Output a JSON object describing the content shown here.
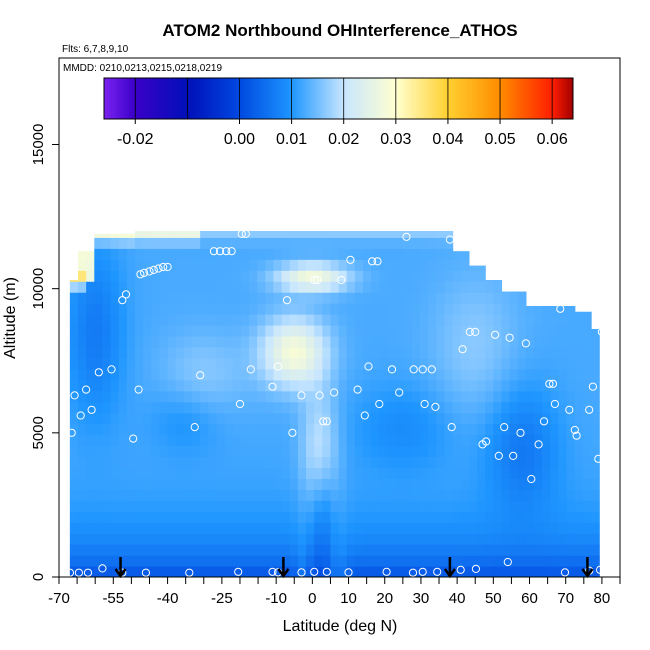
{
  "chart_data": {
    "type": "heatmap",
    "title": "ATOM2 Northbound OHInterference_ATHOS",
    "flights_label": "Flts: 6,7,8,9,10",
    "mmdd_label": "MMDD: 0210,0213,0215,0218,0219",
    "xlabel": "Latitude (deg N)",
    "ylabel": "Altitude (m)",
    "xlim": [
      -70,
      85
    ],
    "ylim": [
      0,
      18000
    ],
    "x_ticks": [
      -70,
      -55,
      -40,
      -25,
      -10,
      0,
      10,
      20,
      30,
      40,
      50,
      60,
      70,
      80
    ],
    "x_tick_labels": [
      "-70",
      "-55",
      "-40",
      "-25",
      "-10",
      "0",
      "10",
      "20",
      "30",
      "40",
      "50",
      "60",
      "70",
      "80"
    ],
    "x_minor_ticks": [
      -65,
      -60,
      -50,
      -45,
      -35,
      -30,
      -20,
      -15,
      -5,
      5,
      15,
      25,
      35,
      45,
      55,
      65,
      75,
      85
    ],
    "y_ticks": [
      0,
      5000,
      10000,
      15000
    ],
    "y_tick_labels": [
      "0",
      "5000",
      "10000",
      "15000"
    ],
    "colorbar": {
      "range": [
        -0.026,
        0.064
      ],
      "ticks": [
        -0.02,
        0.0,
        0.01,
        0.02,
        0.03,
        0.04,
        0.05,
        0.06
      ],
      "tick_labels": [
        "-0.02",
        "0.00",
        "0.01",
        "0.02",
        "0.03",
        "0.04",
        "0.05",
        "0.06"
      ],
      "divisions": [
        -0.026,
        -0.02,
        -0.01,
        0.0,
        0.01,
        0.02,
        0.03,
        0.04,
        0.05,
        0.06,
        0.064
      ],
      "colors": [
        "#7b22f0",
        "#3a00c8",
        "#0010b8",
        "#0048e0",
        "#1e96ff",
        "#c8e6ff",
        "#ffffd0",
        "#ffd030",
        "#ff8c00",
        "#ff1e00",
        "#a00000"
      ]
    },
    "profiles": [
      {
        "lat": -67,
        "top": 10300
      },
      {
        "lat": -65,
        "top": 11300
      },
      {
        "lat": -60,
        "top": 11900
      },
      {
        "lat": -50,
        "top": 12000
      },
      {
        "lat": -20,
        "top": 12000
      },
      {
        "lat": 10,
        "top": 12000
      },
      {
        "lat": 36,
        "top": 12000
      },
      {
        "lat": 39,
        "top": 11300
      },
      {
        "lat": 44,
        "top": 10800
      },
      {
        "lat": 48,
        "top": 10300
      },
      {
        "lat": 53,
        "top": 9900
      },
      {
        "lat": 60,
        "top": 9400
      },
      {
        "lat": 72,
        "top": 9200
      },
      {
        "lat": 77,
        "top": 8600
      },
      {
        "lat": 80,
        "top": 8600
      }
    ],
    "sample_points": [
      [
        -66.5,
        5000
      ],
      [
        -65.7,
        6300
      ],
      [
        -64,
        5600
      ],
      [
        -62.5,
        6500
      ],
      [
        -61,
        5800
      ],
      [
        -59,
        7100
      ],
      [
        -55.5,
        7200
      ],
      [
        -52.5,
        9600
      ],
      [
        -51.5,
        9800
      ],
      [
        -48,
        6500
      ],
      [
        -49.5,
        4800
      ],
      [
        -47.5,
        10500
      ],
      [
        -46.5,
        10550
      ],
      [
        -45,
        10600
      ],
      [
        -43.8,
        10650
      ],
      [
        -42.5,
        10700
      ],
      [
        -41.2,
        10750
      ],
      [
        -40,
        10750
      ],
      [
        -32.5,
        5200
      ],
      [
        -31,
        7000
      ],
      [
        -27.2,
        11300
      ],
      [
        -25.5,
        11300
      ],
      [
        -23.8,
        11300
      ],
      [
        -22.3,
        11300
      ],
      [
        -19.5,
        11900
      ],
      [
        -18.4,
        11900
      ],
      [
        -20,
        6000
      ],
      [
        -17,
        7200
      ],
      [
        -11,
        6600
      ],
      [
        -9.5,
        7300
      ],
      [
        -7,
        9600
      ],
      [
        -5.5,
        5000
      ],
      [
        -3,
        6300
      ],
      [
        0.5,
        10300
      ],
      [
        1.3,
        10300
      ],
      [
        2,
        6300
      ],
      [
        3,
        5400
      ],
      [
        4,
        5400
      ],
      [
        6,
        6400
      ],
      [
        8,
        10300
      ],
      [
        10.5,
        11000
      ],
      [
        12.5,
        6500
      ],
      [
        14.5,
        5600
      ],
      [
        15.5,
        7300
      ],
      [
        16.5,
        10950
      ],
      [
        18,
        10950
      ],
      [
        18.5,
        6000
      ],
      [
        22,
        7200
      ],
      [
        24,
        6400
      ],
      [
        26,
        11800
      ],
      [
        28,
        7200
      ],
      [
        30.5,
        7200
      ],
      [
        31,
        6000
      ],
      [
        33,
        7200
      ],
      [
        34,
        5900
      ],
      [
        38.5,
        5200
      ],
      [
        38,
        11700
      ],
      [
        41.5,
        7900
      ],
      [
        43.5,
        8500
      ],
      [
        45,
        8500
      ],
      [
        47,
        4600
      ],
      [
        48,
        4700
      ],
      [
        50.5,
        8400
      ],
      [
        51.5,
        4200
      ],
      [
        53,
        5200
      ],
      [
        54.5,
        8300
      ],
      [
        55.5,
        4200
      ],
      [
        57.5,
        5000
      ],
      [
        59,
        8100
      ],
      [
        60.5,
        3400
      ],
      [
        62.5,
        4600
      ],
      [
        64,
        5400
      ],
      [
        65.5,
        6700
      ],
      [
        66.5,
        6700
      ],
      [
        67,
        6000
      ],
      [
        68.5,
        9300
      ],
      [
        71,
        5800
      ],
      [
        72.5,
        5100
      ],
      [
        73,
        4900
      ],
      [
        76.5,
        5800
      ],
      [
        77.5,
        6600
      ],
      [
        79,
        4100
      ],
      [
        80,
        8500
      ],
      [
        -67,
        150
      ],
      [
        -64.5,
        150
      ],
      [
        -62,
        150
      ],
      [
        -58,
        300
      ],
      [
        -52.5,
        150
      ],
      [
        -46,
        150
      ],
      [
        -34,
        150
      ],
      [
        -20.5,
        180
      ],
      [
        -11,
        180
      ],
      [
        -9.5,
        160
      ],
      [
        -3,
        160
      ],
      [
        0.5,
        180
      ],
      [
        4,
        180
      ],
      [
        10,
        160
      ],
      [
        20.5,
        180
      ],
      [
        27.8,
        150
      ],
      [
        30.5,
        180
      ],
      [
        34.5,
        180
      ],
      [
        41,
        250
      ],
      [
        45.2,
        280
      ],
      [
        54,
        520
      ],
      [
        69.8,
        160
      ],
      [
        76.5,
        220
      ],
      [
        79.5,
        250
      ]
    ],
    "arrows_lat": [
      -53,
      -8,
      38,
      76
    ]
  }
}
